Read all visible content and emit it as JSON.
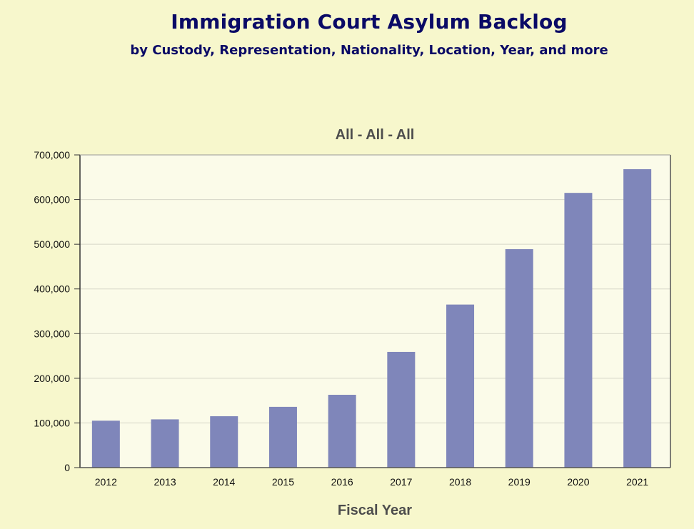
{
  "page": {
    "title": "Immigration Court Asylum Backlog",
    "subtitle": "by Custody, Representation, Nationality, Location, Year, and more"
  },
  "colors": {
    "background": "#f7f7cc",
    "plot_background": "#fbfbe9",
    "bar": "#7f86ba",
    "title": "#0a0a66",
    "gridline": "#d6d6c8"
  },
  "chart_data": {
    "type": "bar",
    "title": "All - All - All",
    "xlabel": "Fiscal Year",
    "ylabel": "",
    "categories": [
      "2012",
      "2013",
      "2014",
      "2015",
      "2016",
      "2017",
      "2018",
      "2019",
      "2020",
      "2021"
    ],
    "values": [
      105000,
      108000,
      115000,
      136000,
      163000,
      259000,
      365000,
      489000,
      615000,
      668000
    ],
    "ylim": [
      0,
      700000
    ],
    "yticks": [
      0,
      100000,
      200000,
      300000,
      400000,
      500000,
      600000,
      700000
    ],
    "ytick_labels": [
      "0",
      "100,000",
      "200,000",
      "300,000",
      "400,000",
      "500,000",
      "600,000",
      "700,000"
    ],
    "grid": true,
    "legend": "none"
  }
}
